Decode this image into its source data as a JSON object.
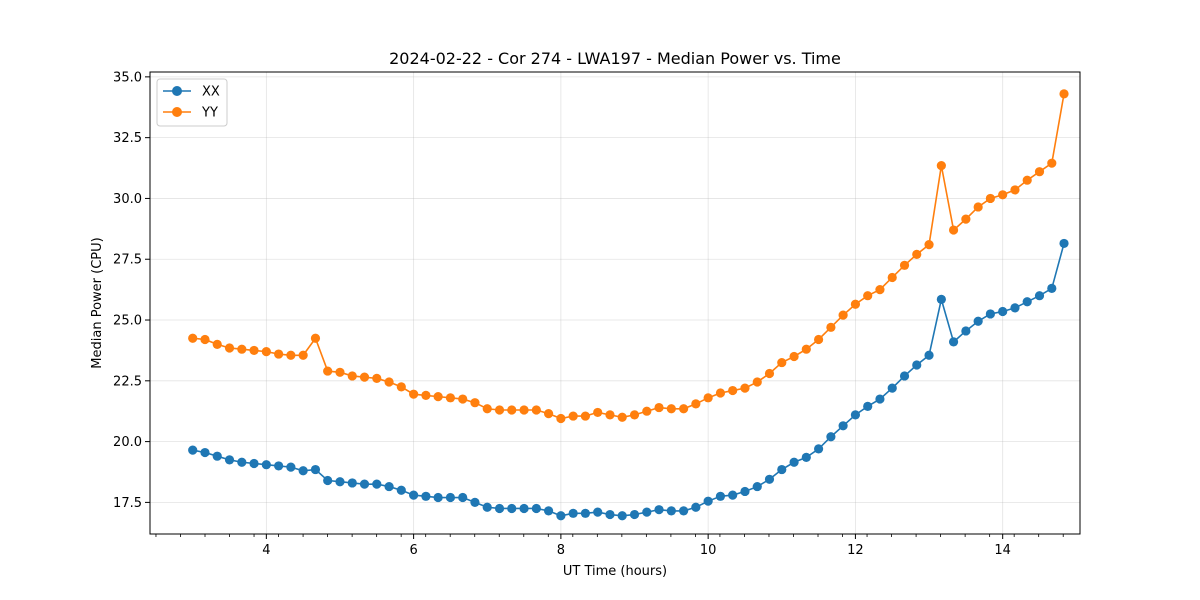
{
  "chart_data": {
    "type": "line",
    "title": "2024-02-22 - Cor 274 - LWA197 - Median Power vs. Time",
    "xlabel": "UT Time (hours)",
    "ylabel": "Median Power (CPU)",
    "xlim": [
      2.42,
      15.05
    ],
    "ylim": [
      16.2,
      35.2
    ],
    "xticks": [
      4,
      6,
      8,
      10,
      12,
      14
    ],
    "xtick_labels": [
      "4",
      "6",
      "8",
      "10",
      "12",
      "14"
    ],
    "xminor_step": 0.333,
    "yticks": [
      17.5,
      20.0,
      22.5,
      25.0,
      27.5,
      30.0,
      32.5,
      35.0
    ],
    "ytick_labels": [
      "17.5",
      "20.0",
      "22.5",
      "25.0",
      "27.5",
      "30.0",
      "32.5",
      "35.0"
    ],
    "grid": true,
    "legend_position": "top-left",
    "x": [
      3.0,
      3.167,
      3.333,
      3.5,
      3.667,
      3.833,
      4.0,
      4.167,
      4.333,
      4.5,
      4.667,
      4.833,
      5.0,
      5.167,
      5.333,
      5.5,
      5.667,
      5.833,
      6.0,
      6.167,
      6.333,
      6.5,
      6.667,
      6.833,
      7.0,
      7.167,
      7.333,
      7.5,
      7.667,
      7.833,
      8.0,
      8.167,
      8.333,
      8.5,
      8.667,
      8.833,
      9.0,
      9.167,
      9.333,
      9.5,
      9.667,
      9.833,
      10.0,
      10.167,
      10.333,
      10.5,
      10.667,
      10.833,
      11.0,
      11.167,
      11.333,
      11.5,
      11.667,
      11.833,
      12.0,
      12.167,
      12.333,
      12.5,
      12.667,
      12.833,
      13.0,
      13.167,
      13.333,
      13.5,
      13.667,
      13.833,
      14.0,
      14.167,
      14.333,
      14.5,
      14.667,
      14.833
    ],
    "series": [
      {
        "name": "XX",
        "color": "#1f77b4",
        "values": [
          19.65,
          19.55,
          19.4,
          19.25,
          19.15,
          19.1,
          19.05,
          19.0,
          18.95,
          18.8,
          18.85,
          18.4,
          18.35,
          18.3,
          18.25,
          18.25,
          18.15,
          18.0,
          17.8,
          17.75,
          17.7,
          17.7,
          17.7,
          17.5,
          17.3,
          17.25,
          17.25,
          17.25,
          17.25,
          17.15,
          16.95,
          17.05,
          17.05,
          17.1,
          17.0,
          16.95,
          17.0,
          17.1,
          17.2,
          17.15,
          17.15,
          17.3,
          17.55,
          17.75,
          17.8,
          17.95,
          18.15,
          18.45,
          18.85,
          19.15,
          19.35,
          19.7,
          20.2,
          20.65,
          21.1,
          21.45,
          21.75,
          22.2,
          22.7,
          23.15,
          23.55,
          25.85,
          24.1,
          24.55,
          24.95,
          25.25,
          25.35,
          25.5,
          25.75,
          26.0,
          26.3,
          28.15
        ]
      },
      {
        "name": "YY",
        "color": "#ff7f0e",
        "values": [
          24.25,
          24.2,
          24.0,
          23.85,
          23.8,
          23.75,
          23.7,
          23.6,
          23.55,
          23.55,
          24.25,
          22.9,
          22.85,
          22.7,
          22.65,
          22.6,
          22.45,
          22.25,
          21.95,
          21.9,
          21.85,
          21.8,
          21.75,
          21.6,
          21.35,
          21.3,
          21.3,
          21.3,
          21.3,
          21.15,
          20.95,
          21.05,
          21.05,
          21.2,
          21.1,
          21.0,
          21.1,
          21.25,
          21.4,
          21.35,
          21.35,
          21.55,
          21.8,
          22.0,
          22.1,
          22.2,
          22.45,
          22.8,
          23.25,
          23.5,
          23.8,
          24.2,
          24.7,
          25.2,
          25.65,
          26.0,
          26.25,
          26.75,
          27.25,
          27.7,
          28.1,
          31.35,
          28.7,
          29.15,
          29.65,
          30.0,
          30.15,
          30.35,
          30.75,
          31.1,
          31.45,
          34.3
        ]
      }
    ]
  }
}
